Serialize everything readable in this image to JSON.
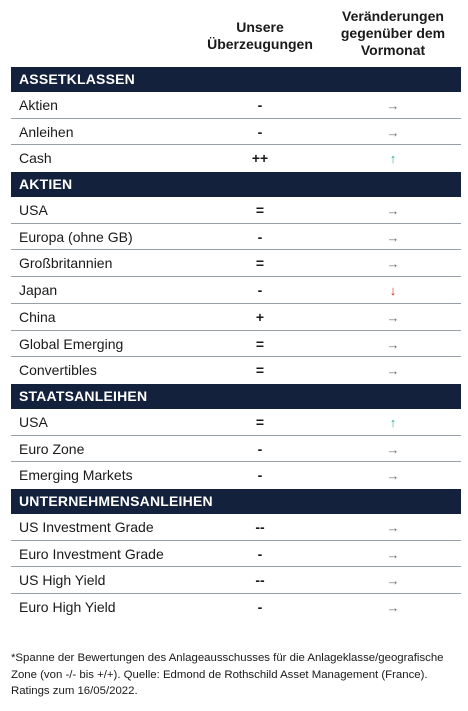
{
  "header": {
    "conviction": "Unsere Überzeugungen",
    "change": "Veränderungen gegenüber dem Vormonat"
  },
  "sections": [
    {
      "title": "ASSETKLASSEN",
      "rows": [
        {
          "label": "Aktien",
          "conviction": "-",
          "change": "flat"
        },
        {
          "label": "Anleihen",
          "conviction": "-",
          "change": "flat"
        },
        {
          "label": "Cash",
          "conviction": "++",
          "change": "up"
        }
      ]
    },
    {
      "title": "AKTIEN",
      "rows": [
        {
          "label": "USA",
          "conviction": "=",
          "change": "flat"
        },
        {
          "label": "Europa (ohne GB)",
          "conviction": "-",
          "change": "flat"
        },
        {
          "label": "Großbritannien",
          "conviction": "=",
          "change": "flat"
        },
        {
          "label": "Japan",
          "conviction": "-",
          "change": "down"
        },
        {
          "label": "China",
          "conviction": "+",
          "change": "flat"
        },
        {
          "label": "Global Emerging",
          "conviction": "=",
          "change": "flat"
        },
        {
          "label": "Convertibles",
          "conviction": "=",
          "change": "flat"
        }
      ]
    },
    {
      "title": "STAATSANLEIHEN",
      "rows": [
        {
          "label": "USA",
          "conviction": "=",
          "change": "up"
        },
        {
          "label": "Euro Zone",
          "conviction": "-",
          "change": "flat"
        },
        {
          "label": "Emerging Markets",
          "conviction": "-",
          "change": "flat"
        }
      ]
    },
    {
      "title": "UNTERNEHMENSANLEIHEN",
      "rows": [
        {
          "label": "US Investment Grade",
          "conviction": "--",
          "change": "flat"
        },
        {
          "label": "Euro Investment Grade",
          "conviction": "-",
          "change": "flat"
        },
        {
          "label": "US High Yield",
          "conviction": "--",
          "change": "flat"
        },
        {
          "label": "Euro High Yield",
          "conviction": "-",
          "change": "flat"
        }
      ]
    }
  ],
  "icons": {
    "flat": "arrow-right-icon",
    "up": "arrow-up-icon",
    "down": "arrow-down-icon"
  },
  "colors": {
    "section_bg": "#14213d",
    "arrow_flat": "#6e6e6e",
    "arrow_up": "#2bb673",
    "arrow_down": "#e1261c"
  },
  "footnote": "*Spanne der Bewertungen des Anlageausschusses für die Anlageklasse/geografische Zone (von -/- bis +/+). Quelle: Edmond de Rothschild Asset Management (France). Ratings zum 16/05/2022."
}
